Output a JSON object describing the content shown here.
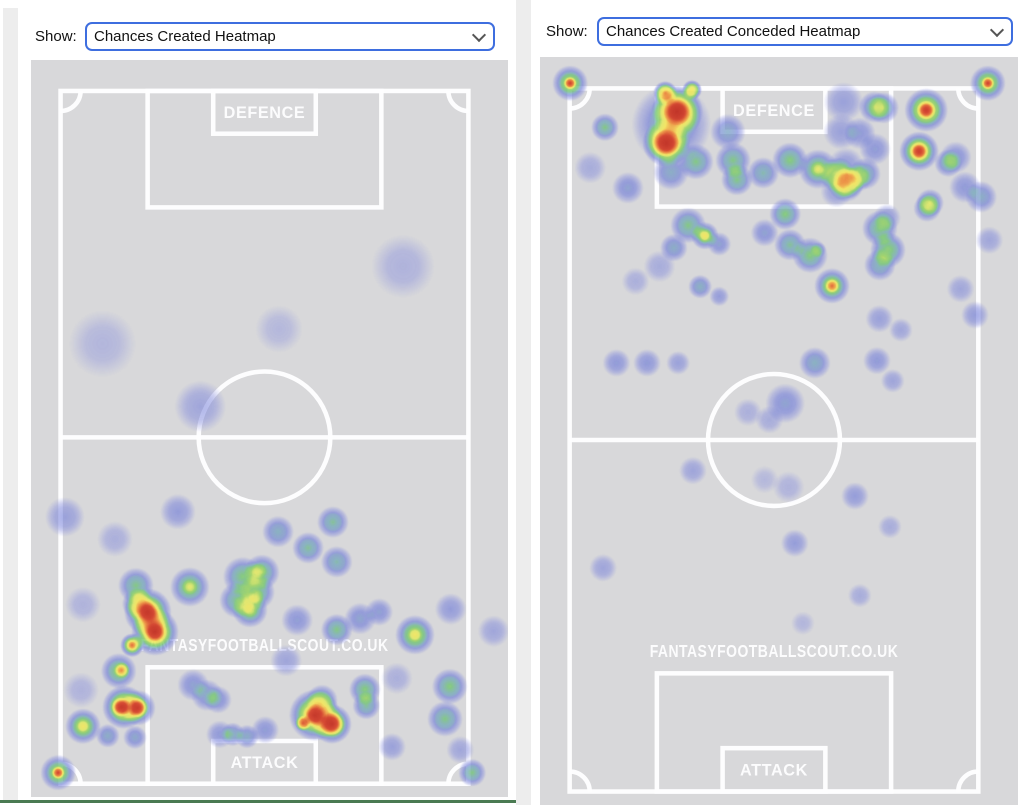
{
  "panels": [
    {
      "show_label": "Show:",
      "dropdown_value": "Chances Created Heatmap",
      "dropdown_options": [
        "Chances Created Heatmap"
      ],
      "pitch": {
        "defence_label": "DEFENCE",
        "attack_label": "ATTACK",
        "watermark": "FANTASYFOOTBALLSCOUT.CO.UK"
      }
    },
    {
      "show_label": "Show:",
      "dropdown_value": "Chances Created Conceded Heatmap",
      "dropdown_options": [
        "Chances Created Conceded Heatmap"
      ],
      "pitch": {
        "defence_label": "DEFENCE",
        "attack_label": "ATTACK",
        "watermark": "FANTASYFOOTBALLSCOUT.CO.UK"
      }
    }
  ],
  "colors": {
    "page_bg": "#ffffff",
    "pitch_bg": "#d9d9da",
    "pitch_line": "#ffffff",
    "select_border": "#3e6edf",
    "divider_green": "#4a7a52",
    "panel_strip": "#ededed",
    "heat_palette": [
      [
        "0.00",
        "rgba(140,146,224,0)"
      ],
      [
        "0.14",
        "rgba(134,141,222,0.42)"
      ],
      [
        "0.30",
        "rgba(110,122,216,0.64)"
      ],
      [
        "0.42",
        "rgba(108,164,182,0.72)"
      ],
      [
        "0.50",
        "rgba(112,196,112,0.80)"
      ],
      [
        "0.60",
        "rgba(150,210,90,0.84)"
      ],
      [
        "0.68",
        "rgba(226,233,98,0.87)"
      ],
      [
        "0.76",
        "rgba(245,230,86,0.88)"
      ],
      [
        "0.84",
        "rgba(238,140,56,0.90)"
      ],
      [
        "0.92",
        "rgba(212,62,38,0.93)"
      ],
      [
        "1.00",
        "rgba(188,40,30,0.95)"
      ]
    ]
  },
  "chart_data": [
    {
      "type": "heatmap",
      "title": "Chances Created Heatmap",
      "orientation": "defence-top-attack-bottom",
      "point_format": [
        "x_pct",
        "y_pct",
        "radius_px",
        "intensity_0_1"
      ],
      "points": [
        [
          78,
          28,
          16,
          0.18
        ],
        [
          15,
          38.5,
          17,
          0.16
        ],
        [
          52,
          36.5,
          12,
          0.15
        ],
        [
          35.5,
          47,
          13,
          0.25
        ],
        [
          30.8,
          61.3,
          9,
          0.3
        ],
        [
          7.1,
          62,
          10,
          0.28
        ],
        [
          17.6,
          65,
          9,
          0.2
        ],
        [
          51.8,
          64,
          8,
          0.42
        ],
        [
          58.1,
          66.2,
          8,
          0.48
        ],
        [
          63.3,
          62.7,
          8,
          0.48
        ],
        [
          64.1,
          68.1,
          8,
          0.45
        ],
        [
          44.4,
          70.1,
          10,
          0.52
        ],
        [
          48.4,
          69.5,
          9,
          0.52
        ],
        [
          47.4,
          72.2,
          9,
          0.52
        ],
        [
          47.8,
          69.3,
          4,
          0.3
        ],
        [
          47.2,
          72.8,
          4,
          0.3
        ],
        [
          43.2,
          73.3,
          9,
          0.5
        ],
        [
          45.9,
          74.6,
          9,
          0.55
        ],
        [
          45.9,
          74.6,
          4,
          0.35
        ],
        [
          33.3,
          71.5,
          10,
          0.55
        ],
        [
          33.3,
          71.5,
          4,
          0.35
        ],
        [
          22,
          71.3,
          9,
          0.5
        ],
        [
          22.4,
          73.8,
          8,
          0.55
        ],
        [
          24.5,
          74.9,
          12,
          0.78
        ],
        [
          24.5,
          74.9,
          6,
          0.88
        ],
        [
          26,
          77.6,
          12,
          0.8
        ],
        [
          26,
          77.6,
          6,
          0.9
        ],
        [
          21.2,
          79.4,
          6,
          0.75
        ],
        [
          21.2,
          79.4,
          3,
          0.55
        ],
        [
          10.9,
          73.9,
          9,
          0.18
        ],
        [
          10.5,
          85.5,
          9,
          0.18
        ],
        [
          55.8,
          76,
          8,
          0.33
        ],
        [
          64.1,
          77.3,
          8,
          0.5
        ],
        [
          69,
          75.8,
          8,
          0.36
        ],
        [
          73,
          74.9,
          7,
          0.34
        ],
        [
          80.5,
          78,
          10,
          0.6
        ],
        [
          80.5,
          78,
          4,
          0.4
        ],
        [
          88,
          74.5,
          8,
          0.3
        ],
        [
          97,
          77.5,
          8,
          0.25
        ],
        [
          18.4,
          82.9,
          9,
          0.55
        ],
        [
          19,
          82.8,
          4,
          0.7
        ],
        [
          19.5,
          87.8,
          11,
          0.75
        ],
        [
          18.9,
          87.8,
          5,
          0.9
        ],
        [
          22.4,
          87.9,
          9,
          0.6
        ],
        [
          22.4,
          87.9,
          5,
          0.85
        ],
        [
          10.9,
          90.4,
          9,
          0.6
        ],
        [
          10.9,
          90.4,
          4,
          0.4
        ],
        [
          16.1,
          91.7,
          6,
          0.4
        ],
        [
          21.8,
          91.9,
          6,
          0.38
        ],
        [
          34,
          84.8,
          8,
          0.35
        ],
        [
          36.9,
          86.2,
          8,
          0.38
        ],
        [
          39.2,
          86.8,
          7,
          0.35
        ],
        [
          39.6,
          91.5,
          7,
          0.32
        ],
        [
          42.3,
          91.5,
          6,
          0.42
        ],
        [
          45.3,
          91.8,
          6,
          0.4
        ],
        [
          49.1,
          90.9,
          7,
          0.33
        ],
        [
          53.5,
          81.5,
          8,
          0.26
        ],
        [
          59.5,
          88.9,
          13,
          0.78
        ],
        [
          59.5,
          88.9,
          6,
          0.9
        ],
        [
          63.1,
          90.1,
          10,
          0.75
        ],
        [
          63.1,
          90.1,
          6,
          0.88
        ],
        [
          57,
          90,
          4,
          0.8
        ],
        [
          61,
          86.9,
          8,
          0.5
        ],
        [
          70,
          85.4,
          8,
          0.52
        ],
        [
          70.3,
          87.6,
          7,
          0.48
        ],
        [
          76.7,
          83.9,
          8,
          0.2
        ],
        [
          75.7,
          93.2,
          7,
          0.28
        ],
        [
          87.8,
          85,
          9,
          0.52
        ],
        [
          86.8,
          89.4,
          9,
          0.5
        ],
        [
          90,
          93.6,
          7,
          0.25
        ],
        [
          5.7,
          96.7,
          9,
          0.6
        ],
        [
          5.7,
          96.7,
          3.5,
          0.85
        ],
        [
          92.5,
          96.7,
          7,
          0.5
        ]
      ]
    },
    {
      "type": "heatmap",
      "title": "Chances Created Conceded Heatmap",
      "orientation": "defence-top-attack-bottom",
      "point_format": [
        "x_pct",
        "y_pct",
        "radius_px",
        "intensity_0_1"
      ],
      "points": [
        [
          6.3,
          3.5,
          9,
          0.62
        ],
        [
          6.3,
          3.5,
          3.5,
          0.85
        ],
        [
          93.7,
          3.5,
          9,
          0.62
        ],
        [
          93.7,
          3.5,
          3.5,
          0.85
        ],
        [
          26.2,
          4.8,
          6,
          0.8
        ],
        [
          31.8,
          4.4,
          5,
          0.78
        ],
        [
          28.7,
          7.3,
          13,
          0.8
        ],
        [
          28.7,
          7.3,
          7,
          0.92
        ],
        [
          26.4,
          11.5,
          12,
          0.8
        ],
        [
          26.4,
          11.5,
          7,
          0.9
        ],
        [
          27.5,
          9,
          20,
          0.45
        ],
        [
          27.4,
          15.4,
          9,
          0.4
        ],
        [
          13.6,
          9.4,
          7,
          0.5
        ],
        [
          10.5,
          14.8,
          8,
          0.22
        ],
        [
          18.4,
          17.5,
          8,
          0.35
        ],
        [
          39.3,
          10,
          9,
          0.4
        ],
        [
          32.6,
          14,
          9,
          0.5
        ],
        [
          40.4,
          13.8,
          9,
          0.5
        ],
        [
          41.2,
          16.4,
          8,
          0.5
        ],
        [
          46.7,
          15.5,
          8,
          0.45
        ],
        [
          52.3,
          13.8,
          9,
          0.52
        ],
        [
          58.2,
          15,
          10,
          0.55
        ],
        [
          58.2,
          15,
          4,
          0.35
        ],
        [
          62.3,
          15.8,
          9,
          0.52
        ],
        [
          64,
          17,
          9,
          0.5
        ],
        [
          70.1,
          12.3,
          8,
          0.33
        ],
        [
          66.9,
          10.2,
          8,
          0.33
        ],
        [
          71.8,
          6.8,
          8,
          0.48
        ],
        [
          63.5,
          6,
          10,
          0.28
        ],
        [
          63,
          10,
          9,
          0.28
        ],
        [
          64,
          14.5,
          9,
          0.3
        ],
        [
          62,
          18,
          8,
          0.28
        ],
        [
          70,
          6.7,
          8,
          0.48
        ],
        [
          80.8,
          7.1,
          11,
          0.72
        ],
        [
          80.8,
          7.1,
          5,
          0.85
        ],
        [
          79.3,
          12.6,
          10,
          0.72
        ],
        [
          79.3,
          12.6,
          5,
          0.85
        ],
        [
          87,
          13.4,
          8,
          0.35
        ],
        [
          85.4,
          14.2,
          7,
          0.45
        ],
        [
          92.3,
          18.7,
          8,
          0.4
        ],
        [
          88.9,
          17.4,
          8,
          0.32
        ],
        [
          81.6,
          19.5,
          7,
          0.5
        ],
        [
          64.5,
          16.8,
          8,
          0.5
        ],
        [
          68,
          15.6,
          8,
          0.45
        ],
        [
          66.5,
          16.2,
          7,
          0.35
        ],
        [
          31,
          22.5,
          9,
          0.5
        ],
        [
          34.5,
          23.9,
          7,
          0.55
        ],
        [
          34.5,
          23.9,
          3.5,
          0.5
        ],
        [
          28,
          25.5,
          7,
          0.4
        ],
        [
          37.5,
          25,
          6,
          0.35
        ],
        [
          51.3,
          21,
          8,
          0.52
        ],
        [
          47,
          23.5,
          7,
          0.35
        ],
        [
          52.3,
          25.1,
          8,
          0.48
        ],
        [
          56.5,
          26.5,
          9,
          0.52
        ],
        [
          58.2,
          25.8,
          4,
          0.3
        ],
        [
          61.1,
          30.6,
          9,
          0.6
        ],
        [
          61.1,
          30.6,
          4,
          0.72
        ],
        [
          71.1,
          22.9,
          9,
          0.52
        ],
        [
          72.8,
          25.8,
          9,
          0.55
        ],
        [
          71.1,
          27.8,
          8,
          0.45
        ],
        [
          72.6,
          21.5,
          7,
          0.3
        ],
        [
          81,
          20.2,
          7,
          0.45
        ],
        [
          33.5,
          30.7,
          6,
          0.42
        ],
        [
          37.5,
          32,
          5,
          0.3
        ],
        [
          25,
          28,
          8,
          0.22
        ],
        [
          20,
          30,
          7,
          0.2
        ],
        [
          71,
          35,
          7,
          0.28
        ],
        [
          75.5,
          36.5,
          6,
          0.25
        ],
        [
          88,
          31,
          7,
          0.25
        ],
        [
          91,
          34.5,
          7,
          0.3
        ],
        [
          94,
          24.5,
          7,
          0.25
        ],
        [
          16,
          40.9,
          7,
          0.32
        ],
        [
          22.4,
          40.9,
          7,
          0.32
        ],
        [
          28.9,
          40.9,
          6,
          0.28
        ],
        [
          57.5,
          40.9,
          8,
          0.42
        ],
        [
          70.5,
          40.6,
          7,
          0.32
        ],
        [
          73.8,
          43.3,
          6,
          0.26
        ],
        [
          51.3,
          46.3,
          10,
          0.35
        ],
        [
          48,
          48.5,
          7,
          0.22
        ],
        [
          43.5,
          47.5,
          7,
          0.2
        ],
        [
          32,
          55.3,
          7,
          0.26
        ],
        [
          52,
          57.5,
          8,
          0.18
        ],
        [
          47,
          56.5,
          7,
          0.15
        ],
        [
          65.9,
          58.7,
          7,
          0.3
        ],
        [
          73.2,
          62.8,
          6,
          0.22
        ],
        [
          53.3,
          65,
          7,
          0.3
        ],
        [
          13.2,
          68.3,
          7,
          0.26
        ],
        [
          66.9,
          72,
          6,
          0.22
        ],
        [
          55,
          75.7,
          6,
          0.16
        ]
      ]
    }
  ]
}
